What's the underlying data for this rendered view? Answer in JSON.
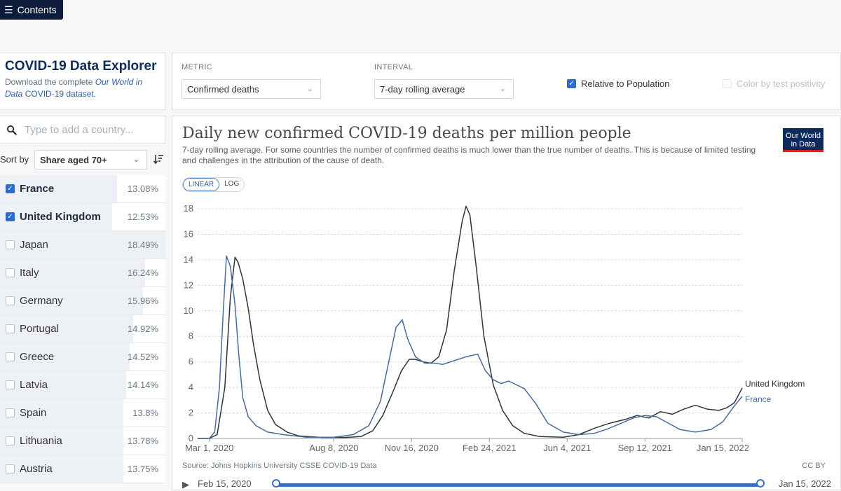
{
  "header": {
    "contents_label": "Contents"
  },
  "explorer": {
    "title": "COVID-19 Data Explorer",
    "desc_prefix": "Download the complete ",
    "desc_owid": "Our World in Data",
    "desc_link": "COVID-19 dataset."
  },
  "controls": {
    "metric_label": "METRIC",
    "metric_value": "Confirmed deaths",
    "interval_label": "INTERVAL",
    "interval_value": "7-day rolling average",
    "relative_label": "Relative to Population",
    "color_label": "Color by test positivity"
  },
  "search": {
    "placeholder": "Type to add a country..."
  },
  "sort": {
    "label": "Sort by",
    "value": "Share aged 70+"
  },
  "countries": [
    {
      "name": "France",
      "value": "13.08%",
      "share": 13.08,
      "selected": true
    },
    {
      "name": "United Kingdom",
      "value": "12.53%",
      "share": 12.53,
      "selected": true
    },
    {
      "name": "Japan",
      "value": "18.49%",
      "share": 18.49,
      "selected": false
    },
    {
      "name": "Italy",
      "value": "16.24%",
      "share": 16.24,
      "selected": false
    },
    {
      "name": "Germany",
      "value": "15.96%",
      "share": 15.96,
      "selected": false
    },
    {
      "name": "Portugal",
      "value": "14.92%",
      "share": 14.92,
      "selected": false
    },
    {
      "name": "Greece",
      "value": "14.52%",
      "share": 14.52,
      "selected": false
    },
    {
      "name": "Latvia",
      "value": "14.14%",
      "share": 14.14,
      "selected": false
    },
    {
      "name": "Spain",
      "value": "13.8%",
      "share": 13.8,
      "selected": false
    },
    {
      "name": "Lithuania",
      "value": "13.78%",
      "share": 13.78,
      "selected": false
    },
    {
      "name": "Austria",
      "value": "13.75%",
      "share": 13.75,
      "selected": false
    }
  ],
  "chart_panel": {
    "logo_line1": "Our World",
    "logo_line2": "in Data",
    "linear_label": "LINEAR",
    "log_label": "LOG",
    "source": "Source: Johns Hopkins University CSSE COVID-19 Data",
    "license": "CC BY",
    "timeline_start": "Feb 15, 2020",
    "timeline_end": "Jan 15, 2022"
  },
  "chart_data": {
    "type": "line",
    "title": "Daily new confirmed COVID-19 deaths per million people",
    "subtitle": "7-day rolling average. For some countries the number of confirmed deaths is much lower than the true number of deaths. This is because of limited testing and challenges in the attribution of the cause of death.",
    "xlabel": "",
    "ylabel": "",
    "x_range_days": [
      0,
      700
    ],
    "ylim": [
      0,
      18
    ],
    "y_ticks": [
      0,
      2,
      4,
      6,
      8,
      10,
      12,
      14,
      16,
      18
    ],
    "x_ticks": [
      {
        "label": "Mar 1, 2020",
        "day": 15
      },
      {
        "label": "Aug 8, 2020",
        "day": 175
      },
      {
        "label": "Nov 16, 2020",
        "day": 275
      },
      {
        "label": "Feb 24, 2021",
        "day": 375
      },
      {
        "label": "Jun 4, 2021",
        "day": 475
      },
      {
        "label": "Sep 12, 2021",
        "day": 575
      },
      {
        "label": "Jan 15, 2022",
        "day": 700
      }
    ],
    "grid": true,
    "series": [
      {
        "name": "United Kingdom",
        "color": "#2b3440",
        "points": [
          [
            0,
            0
          ],
          [
            15,
            0
          ],
          [
            25,
            0.3
          ],
          [
            35,
            4
          ],
          [
            42,
            11
          ],
          [
            48,
            14.2
          ],
          [
            52,
            13.8
          ],
          [
            58,
            12.5
          ],
          [
            65,
            10.2
          ],
          [
            72,
            7.3
          ],
          [
            80,
            4.6
          ],
          [
            90,
            2.2
          ],
          [
            100,
            1.1
          ],
          [
            115,
            0.5
          ],
          [
            130,
            0.2
          ],
          [
            160,
            0.08
          ],
          [
            190,
            0.08
          ],
          [
            210,
            0.15
          ],
          [
            225,
            0.6
          ],
          [
            238,
            1.8
          ],
          [
            252,
            3.8
          ],
          [
            262,
            5.3
          ],
          [
            272,
            6.2
          ],
          [
            280,
            6.2
          ],
          [
            290,
            6.0
          ],
          [
            300,
            5.9
          ],
          [
            310,
            6.4
          ],
          [
            320,
            8.5
          ],
          [
            330,
            13.2
          ],
          [
            340,
            17
          ],
          [
            345,
            18.2
          ],
          [
            350,
            17.5
          ],
          [
            358,
            13.5
          ],
          [
            368,
            8
          ],
          [
            380,
            4.2
          ],
          [
            392,
            2.2
          ],
          [
            405,
            1.0
          ],
          [
            420,
            0.4
          ],
          [
            440,
            0.15
          ],
          [
            470,
            0.1
          ],
          [
            490,
            0.3
          ],
          [
            510,
            0.8
          ],
          [
            530,
            1.2
          ],
          [
            550,
            1.5
          ],
          [
            565,
            1.8
          ],
          [
            580,
            1.6
          ],
          [
            595,
            2.1
          ],
          [
            610,
            1.9
          ],
          [
            625,
            2.3
          ],
          [
            640,
            2.6
          ],
          [
            655,
            2.3
          ],
          [
            670,
            2.2
          ],
          [
            680,
            2.4
          ],
          [
            690,
            2.8
          ],
          [
            700,
            3.95
          ]
        ]
      },
      {
        "name": "France",
        "color": "#4b6a9b",
        "points": [
          [
            0,
            0
          ],
          [
            15,
            0
          ],
          [
            22,
            0.5
          ],
          [
            28,
            4
          ],
          [
            33,
            10
          ],
          [
            37,
            14.3
          ],
          [
            42,
            13.5
          ],
          [
            48,
            10.5
          ],
          [
            53,
            6.5
          ],
          [
            58,
            3.2
          ],
          [
            65,
            1.7
          ],
          [
            75,
            1.0
          ],
          [
            90,
            0.5
          ],
          [
            110,
            0.3
          ],
          [
            140,
            0.1
          ],
          [
            175,
            0.1
          ],
          [
            200,
            0.3
          ],
          [
            220,
            1.0
          ],
          [
            235,
            2.9
          ],
          [
            245,
            5.8
          ],
          [
            255,
            8.7
          ],
          [
            263,
            9.3
          ],
          [
            270,
            7.8
          ],
          [
            280,
            6.4
          ],
          [
            292,
            5.9
          ],
          [
            305,
            5.9
          ],
          [
            315,
            5.8
          ],
          [
            330,
            6.1
          ],
          [
            345,
            6.4
          ],
          [
            360,
            6.6
          ],
          [
            370,
            5.3
          ],
          [
            380,
            4.6
          ],
          [
            390,
            4.3
          ],
          [
            400,
            4.5
          ],
          [
            410,
            4.2
          ],
          [
            420,
            3.9
          ],
          [
            435,
            2.7
          ],
          [
            450,
            1.2
          ],
          [
            470,
            0.5
          ],
          [
            490,
            0.3
          ],
          [
            510,
            0.4
          ],
          [
            525,
            0.7
          ],
          [
            545,
            1.2
          ],
          [
            560,
            1.6
          ],
          [
            575,
            1.8
          ],
          [
            590,
            1.7
          ],
          [
            605,
            1.2
          ],
          [
            620,
            0.7
          ],
          [
            640,
            0.5
          ],
          [
            660,
            0.7
          ],
          [
            675,
            1.3
          ],
          [
            688,
            2.4
          ],
          [
            700,
            3.3
          ]
        ]
      }
    ]
  }
}
